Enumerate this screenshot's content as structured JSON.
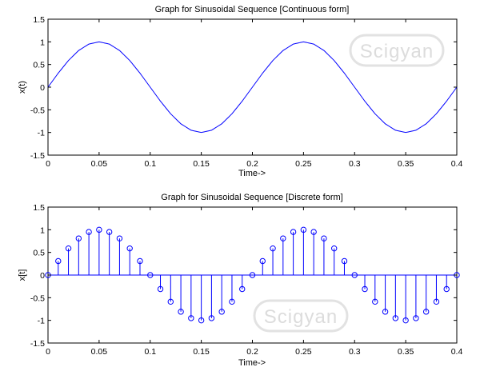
{
  "watermark": "Scigyan",
  "chart_data": [
    {
      "type": "line",
      "title": "Graph for Sinusoidal Sequence [Continuous form]",
      "xlabel": "Time->",
      "ylabel": "x(t)",
      "xlim": [
        0,
        0.4
      ],
      "ylim": [
        -1.5,
        1.5
      ],
      "xticks": [
        "0",
        "0.05",
        "0.1",
        "0.15",
        "0.2",
        "0.25",
        "0.3",
        "0.35",
        "0.4"
      ],
      "yticks": [
        "-1.5",
        "-1",
        "-0.5",
        "0",
        "0.5",
        "1",
        "1.5"
      ],
      "color": "#0000ff",
      "grid": false,
      "series": [
        {
          "x": [
            0,
            0.01,
            0.02,
            0.03,
            0.04,
            0.05,
            0.06,
            0.07,
            0.08,
            0.09,
            0.1,
            0.11,
            0.12,
            0.13,
            0.14,
            0.15,
            0.16,
            0.17,
            0.18,
            0.19,
            0.2,
            0.21,
            0.22,
            0.23,
            0.24,
            0.25,
            0.26,
            0.27,
            0.28,
            0.29,
            0.3,
            0.31,
            0.32,
            0.33,
            0.34,
            0.35,
            0.36,
            0.37,
            0.38,
            0.39,
            0.4
          ],
          "values": [
            0,
            0.309,
            0.588,
            0.809,
            0.951,
            1,
            0.951,
            0.809,
            0.588,
            0.309,
            0,
            -0.309,
            -0.588,
            -0.809,
            -0.951,
            -1,
            -0.951,
            -0.809,
            -0.588,
            -0.309,
            0,
            0.309,
            0.588,
            0.809,
            0.951,
            1,
            0.951,
            0.809,
            0.588,
            0.309,
            0,
            -0.309,
            -0.588,
            -0.809,
            -0.951,
            -1,
            -0.951,
            -0.809,
            -0.588,
            -0.309,
            0
          ]
        }
      ]
    },
    {
      "type": "stem",
      "title": "Graph for Sinusoidal Sequence [Discrete form]",
      "xlabel": "Time->",
      "ylabel": "x[t]",
      "xlim": [
        0,
        0.4
      ],
      "ylim": [
        -1.5,
        1.5
      ],
      "xticks": [
        "0",
        "0.05",
        "0.1",
        "0.15",
        "0.2",
        "0.25",
        "0.3",
        "0.35",
        "0.4"
      ],
      "yticks": [
        "-1.5",
        "-1",
        "-0.5",
        "0",
        "0.5",
        "1",
        "1.5"
      ],
      "color": "#0000ff",
      "grid": false,
      "series": [
        {
          "x": [
            0,
            0.01,
            0.02,
            0.03,
            0.04,
            0.05,
            0.06,
            0.07,
            0.08,
            0.09,
            0.1,
            0.11,
            0.12,
            0.13,
            0.14,
            0.15,
            0.16,
            0.17,
            0.18,
            0.19,
            0.2,
            0.21,
            0.22,
            0.23,
            0.24,
            0.25,
            0.26,
            0.27,
            0.28,
            0.29,
            0.3,
            0.31,
            0.32,
            0.33,
            0.34,
            0.35,
            0.36,
            0.37,
            0.38,
            0.39,
            0.4
          ],
          "values": [
            0,
            0.309,
            0.588,
            0.809,
            0.951,
            1,
            0.951,
            0.809,
            0.588,
            0.309,
            0,
            -0.309,
            -0.588,
            -0.809,
            -0.951,
            -1,
            -0.951,
            -0.809,
            -0.588,
            -0.309,
            0,
            0.309,
            0.588,
            0.809,
            0.951,
            1,
            0.951,
            0.809,
            0.588,
            0.309,
            0,
            -0.309,
            -0.588,
            -0.809,
            -0.951,
            -1,
            -0.951,
            -0.809,
            -0.588,
            -0.309,
            0
          ]
        }
      ]
    }
  ]
}
